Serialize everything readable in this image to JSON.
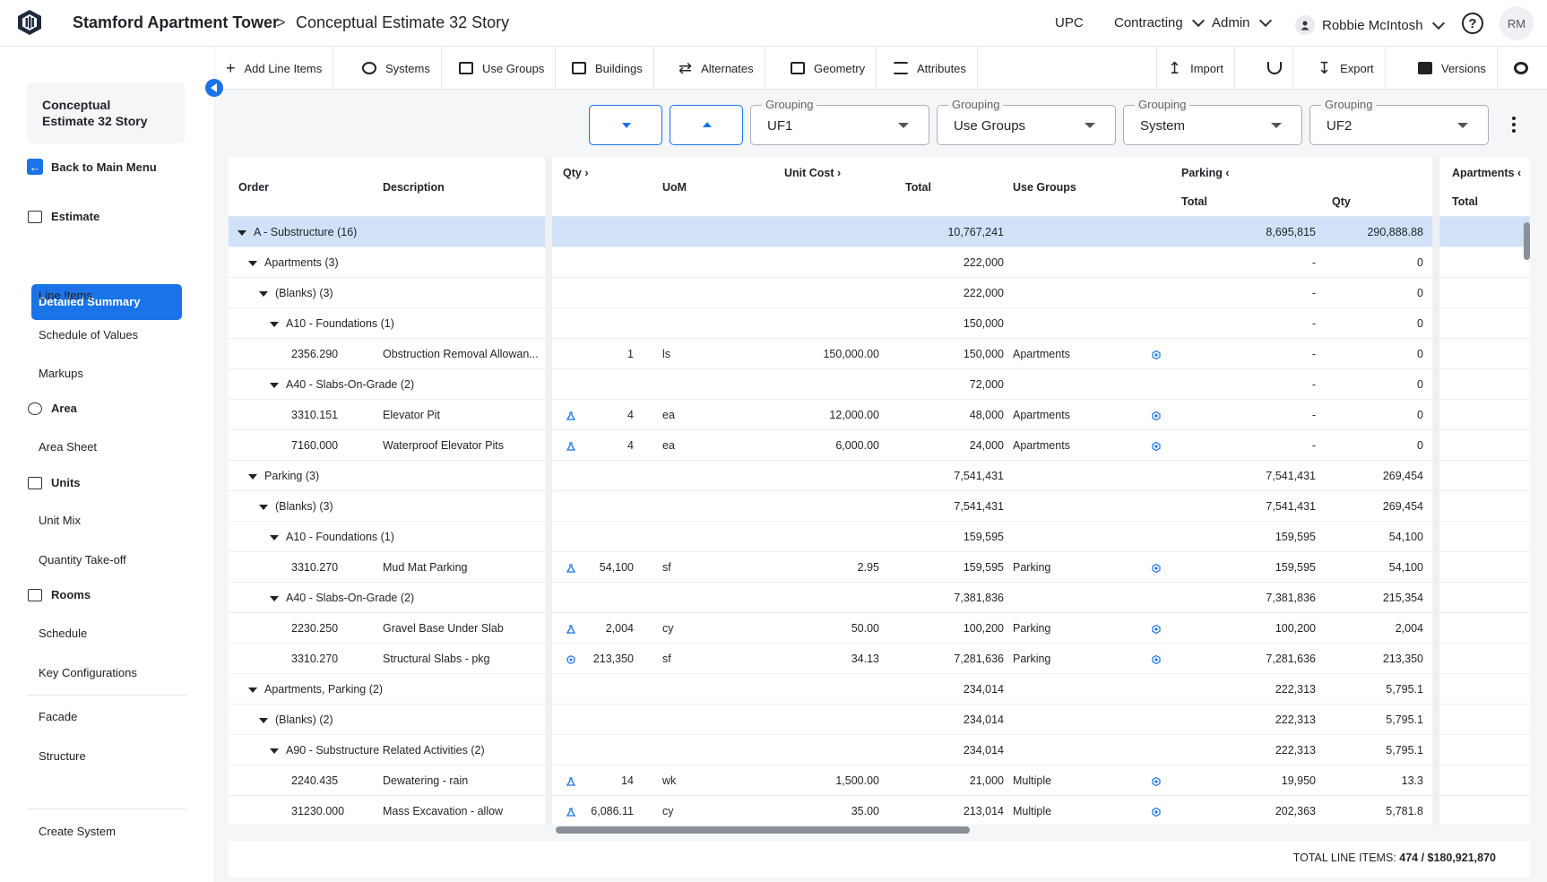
{
  "header": {
    "project": "Stamford Apartment Tower",
    "separator": ">",
    "estimate": "Conceptual Estimate 32 Story",
    "nav": [
      "UPC",
      "Contracting",
      "Admin"
    ],
    "user": "Robbie McIntosh",
    "help": "?",
    "initials": "RM"
  },
  "sidebar": {
    "project_line1": "Conceptual",
    "project_line2": "Estimate 32 Story",
    "back": "Back to Main Menu",
    "sections": {
      "estimate": "Estimate",
      "area": "Area",
      "units": "Units",
      "rooms": "Rooms"
    },
    "estimate_items": [
      "Detailed Summary",
      "Line Items",
      "Schedule of Values",
      "Markups"
    ],
    "area_items": [
      "Area Sheet"
    ],
    "units_items": [
      "Unit Mix",
      "Quantity Take-off"
    ],
    "rooms_items": [
      "Schedule",
      "Key Configurations"
    ],
    "other_items": [
      "Facade",
      "Structure"
    ],
    "bottom": "Create System"
  },
  "toolbar": {
    "add": "Add Line Items",
    "systems": "Systems",
    "use_groups": "Use Groups",
    "buildings": "Buildings",
    "alternates": "Alternates",
    "geometry": "Geometry",
    "attributes": "Attributes",
    "import": "Import",
    "export": "Export",
    "versions": "Versions"
  },
  "groupings": [
    {
      "label": "Grouping",
      "value": "UF1"
    },
    {
      "label": "Grouping",
      "value": "Use Groups"
    },
    {
      "label": "Grouping",
      "value": "System"
    },
    {
      "label": "Grouping",
      "value": "UF2"
    }
  ],
  "columns": {
    "order": "Order",
    "description": "Description",
    "qty": "Qty",
    "uom": "UoM",
    "unit_cost": "Unit Cost",
    "total": "Total",
    "use_groups": "Use Groups",
    "parking": "Parking",
    "parking_total": "Total",
    "parking_qty": "Qty",
    "apartments": "Apartments",
    "apartments_total": "Total"
  },
  "rows": [
    {
      "level": 0,
      "group": true,
      "order": "A - Substructure (16)",
      "total": "10,767,241",
      "ptotal": "8,695,815",
      "pqty": "290,888.88",
      "selected": true
    },
    {
      "level": 1,
      "group": true,
      "order": "Apartments (3)",
      "total": "222,000",
      "ptotal": "-",
      "pqty": "0"
    },
    {
      "level": 2,
      "group": true,
      "order": "(Blanks) (3)",
      "total": "222,000",
      "ptotal": "-",
      "pqty": "0"
    },
    {
      "level": 3,
      "group": true,
      "order": "A10 - Foundations (1)",
      "total": "150,000",
      "ptotal": "-",
      "pqty": "0"
    },
    {
      "level": 4,
      "order": "2356.290",
      "desc": "Obstruction Removal Allowan...",
      "qty": "1",
      "qicon": "",
      "uom": "ls",
      "unit": "150,000.00",
      "total": "150,000",
      "ug": "Apartments",
      "ptotal": "-",
      "pqty": "0"
    },
    {
      "level": 3,
      "group": true,
      "order": "A40 - Slabs-On-Grade (2)",
      "total": "72,000",
      "ptotal": "-",
      "pqty": "0"
    },
    {
      "level": 4,
      "order": "3310.151",
      "desc": "Elevator Pit",
      "qty": "4",
      "qicon": "flask",
      "uom": "ea",
      "unit": "12,000.00",
      "total": "48,000",
      "ug": "Apartments",
      "ptotal": "-",
      "pqty": "0"
    },
    {
      "level": 4,
      "order": "7160.000",
      "desc": "Waterproof Elevator Pits",
      "qty": "4",
      "qicon": "flask",
      "uom": "ea",
      "unit": "6,000.00",
      "total": "24,000",
      "ug": "Apartments",
      "ptotal": "-",
      "pqty": "0"
    },
    {
      "level": 1,
      "group": true,
      "order": "Parking (3)",
      "total": "7,541,431",
      "ptotal": "7,541,431",
      "pqty": "269,454"
    },
    {
      "level": 2,
      "group": true,
      "order": "(Blanks) (3)",
      "total": "7,541,431",
      "ptotal": "7,541,431",
      "pqty": "269,454"
    },
    {
      "level": 3,
      "group": true,
      "order": "A10 - Foundations (1)",
      "total": "159,595",
      "ptotal": "159,595",
      "pqty": "54,100"
    },
    {
      "level": 4,
      "order": "3310.270",
      "desc": "Mud Mat Parking",
      "qty": "54,100",
      "qicon": "flask",
      "uom": "sf",
      "unit": "2.95",
      "total": "159,595",
      "ug": "Parking",
      "ptotal": "159,595",
      "pqty": "54,100"
    },
    {
      "level": 3,
      "group": true,
      "order": "A40 - Slabs-On-Grade (2)",
      "total": "7,381,836",
      "ptotal": "7,381,836",
      "pqty": "215,354"
    },
    {
      "level": 4,
      "order": "2230.250",
      "desc": "Gravel Base Under Slab",
      "qty": "2,004",
      "qicon": "flask",
      "uom": "cy",
      "unit": "50.00",
      "total": "100,200",
      "ug": "Parking",
      "ptotal": "100,200",
      "pqty": "2,004"
    },
    {
      "level": 4,
      "order": "3310.270",
      "desc": "Structural Slabs - pkg",
      "qty": "213,350",
      "qicon": "target",
      "uom": "sf",
      "unit": "34.13",
      "total": "7,281,636",
      "ug": "Parking",
      "ptotal": "7,281,636",
      "pqty": "213,350"
    },
    {
      "level": 1,
      "group": true,
      "order": "Apartments, Parking (2)",
      "total": "234,014",
      "ptotal": "222,313",
      "pqty": "5,795.1"
    },
    {
      "level": 2,
      "group": true,
      "order": "(Blanks) (2)",
      "total": "234,014",
      "ptotal": "222,313",
      "pqty": "5,795.1"
    },
    {
      "level": 3,
      "group": true,
      "order": "A90 - Substructure Related Activities (2)",
      "total": "234,014",
      "ptotal": "222,313",
      "pqty": "5,795.1"
    },
    {
      "level": 4,
      "order": "2240.435",
      "desc": "Dewatering - rain",
      "qty": "14",
      "qicon": "flask",
      "uom": "wk",
      "unit": "1,500.00",
      "total": "21,000",
      "ug": "Multiple",
      "ptotal": "19,950",
      "pqty": "13.3"
    },
    {
      "level": 4,
      "order": "31230.000",
      "desc": "Mass Excavation - allow",
      "qty": "6,086.11",
      "qicon": "flask",
      "uom": "cy",
      "unit": "35.00",
      "total": "213,014",
      "ug": "Multiple",
      "ptotal": "202,363",
      "pqty": "5,781.8"
    }
  ],
  "footer": {
    "label": "TOTAL LINE ITEMS:",
    "value": "474 / $180,921,870"
  },
  "colors": {
    "accent": "#1a73e8",
    "selected_row": "#d1e1f7"
  }
}
